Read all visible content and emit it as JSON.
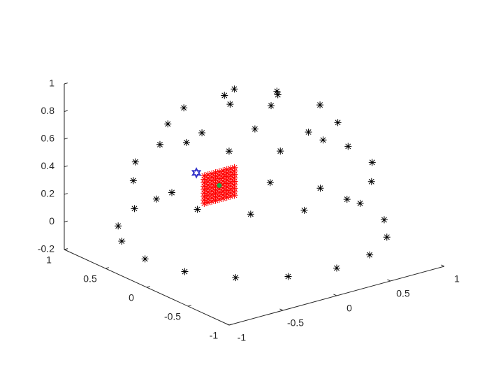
{
  "chart_data": {
    "type": "scatter3",
    "xlim": [
      -1,
      1
    ],
    "ylim": [
      -1,
      1
    ],
    "zlim": [
      -0.2,
      1
    ],
    "xticks": [
      -1,
      -0.5,
      0,
      0.5,
      1
    ],
    "yticks": [
      -1,
      -0.5,
      0,
      0.5,
      1
    ],
    "zticks": [
      -0.2,
      0,
      0.2,
      0.4,
      0.6,
      0.8,
      1
    ],
    "grid": false,
    "series": [
      {
        "color": "#000000",
        "marker": "asterisk",
        "x": [
          -0.04,
          0.19,
          0.18,
          0.51,
          -0.24,
          -0.02,
          -0.31,
          0.45,
          -0.52,
          -0.27,
          0.47,
          -0.54,
          0.09,
          -0.63,
          -0.67,
          0.18,
          0.42,
          -0.51,
          -0.21,
          -0.63,
          0.69,
          -0.81,
          0.53,
          0,
          -0.91,
          0.7,
          0.92,
          0.18,
          0.31,
          -0.93,
          -0.82,
          -0.57,
          -0.21,
          -0.79,
          0.61,
          -0.91,
          0.65,
          -1,
          0.36,
          -0.93,
          0,
          -0.71,
          -0.39
        ],
        "y": [
          0.19,
          0.61,
          -0.04,
          0.38,
          -0.02,
          -0.23,
          0.45,
          -0.21,
          0.37,
          -0.36,
          -0.4,
          -0.07,
          -0.54,
          0,
          0.27,
          -0.6,
          -0.59,
          -0.36,
          -0.59,
          0.62,
          -0.53,
          0.41,
          -0.73,
          1,
          0,
          0.72,
          0.4,
          -0.89,
          -0.88,
          0.24,
          -0.38,
          -0.7,
          -0.88,
          0.62,
          -0.78,
          0.42,
          -0.76,
          0.02,
          -0.93,
          -0.37,
          -1,
          -0.7,
          -0.92
        ],
        "z": [
          0.98,
          0.77,
          0.98,
          0.77,
          0.97,
          0.97,
          0.83,
          0.87,
          0.78,
          0.89,
          0.79,
          0.84,
          0.84,
          0.77,
          0.69,
          0.78,
          0.68,
          0.78,
          0.78,
          0.46,
          0.49,
          0.42,
          0.44,
          0,
          0.42,
          0,
          0,
          0.43,
          0.37,
          0.29,
          0.43,
          0.43,
          0.43,
          0.03,
          0.16,
          0,
          0.02,
          0,
          0,
          0,
          0,
          0,
          0
        ]
      },
      {
        "color": "#ff0000",
        "marker": "asterisk",
        "x": [
          -0.81,
          -0.775,
          -0.74,
          -0.705,
          -0.67,
          -0.635,
          -0.6,
          -0.565,
          -0.53,
          -0.81,
          -0.775,
          -0.74,
          -0.705,
          -0.67,
          -0.635,
          -0.6,
          -0.565,
          -0.53,
          -0.81,
          -0.775,
          -0.74,
          -0.705,
          -0.67,
          -0.635,
          -0.6,
          -0.565,
          -0.53,
          -0.81,
          -0.775,
          -0.74,
          -0.705,
          -0.67,
          -0.635,
          -0.6,
          -0.565,
          -0.53,
          -0.81,
          -0.775,
          -0.74,
          -0.705,
          -0.67,
          -0.635,
          -0.6,
          -0.565,
          -0.53,
          -0.81,
          -0.775,
          -0.74,
          -0.705,
          -0.67,
          -0.635,
          -0.6,
          -0.565,
          -0.53,
          -0.81,
          -0.775,
          -0.74,
          -0.705,
          -0.67,
          -0.635,
          -0.6,
          -0.565,
          -0.53,
          -0.81,
          -0.775,
          -0.74,
          -0.705,
          -0.67,
          -0.635,
          -0.6,
          -0.565,
          -0.53,
          -0.81,
          -0.775,
          -0.74,
          -0.705,
          -0.67,
          -0.635,
          -0.6,
          -0.565,
          -0.53
        ],
        "y": [
          -0.45,
          -0.45,
          -0.45,
          -0.45,
          -0.45,
          -0.45,
          -0.45,
          -0.45,
          -0.45,
          -0.45,
          -0.45,
          -0.45,
          -0.45,
          -0.45,
          -0.45,
          -0.45,
          -0.45,
          -0.45,
          -0.45,
          -0.45,
          -0.45,
          -0.45,
          -0.45,
          -0.45,
          -0.45,
          -0.45,
          -0.45,
          -0.45,
          -0.45,
          -0.45,
          -0.45,
          -0.45,
          -0.45,
          -0.45,
          -0.45,
          -0.45,
          -0.45,
          -0.45,
          -0.45,
          -0.45,
          -0.45,
          -0.45,
          -0.45,
          -0.45,
          -0.45,
          -0.45,
          -0.45,
          -0.45,
          -0.45,
          -0.45,
          -0.45,
          -0.45,
          -0.45,
          -0.45,
          -0.45,
          -0.45,
          -0.45,
          -0.45,
          -0.45,
          -0.45,
          -0.45,
          -0.45,
          -0.45,
          -0.45,
          -0.45,
          -0.45,
          -0.45,
          -0.45,
          -0.45,
          -0.45,
          -0.45,
          -0.45,
          -0.45,
          -0.45,
          -0.45,
          -0.45,
          -0.45,
          -0.45,
          -0.45,
          -0.45,
          -0.45
        ],
        "z": [
          0.49,
          0.49,
          0.49,
          0.49,
          0.49,
          0.49,
          0.49,
          0.49,
          0.49,
          0.515,
          0.515,
          0.515,
          0.515,
          0.515,
          0.515,
          0.515,
          0.515,
          0.515,
          0.54,
          0.54,
          0.54,
          0.54,
          0.54,
          0.54,
          0.54,
          0.54,
          0.54,
          0.565,
          0.565,
          0.565,
          0.565,
          0.565,
          0.565,
          0.565,
          0.565,
          0.565,
          0.59,
          0.59,
          0.59,
          0.59,
          0.59,
          0.59,
          0.59,
          0.59,
          0.59,
          0.615,
          0.615,
          0.615,
          0.615,
          0.615,
          0.615,
          0.615,
          0.615,
          0.615,
          0.64,
          0.64,
          0.64,
          0.64,
          0.64,
          0.64,
          0.64,
          0.64,
          0.64,
          0.665,
          0.665,
          0.665,
          0.665,
          0.665,
          0.665,
          0.665,
          0.665,
          0.665,
          0.69,
          0.69,
          0.69,
          0.69,
          0.69,
          0.69,
          0.69,
          0.69,
          0.69
        ]
      },
      {
        "color": "#2f2fc8",
        "marker": "hexagram",
        "x": [
          -0.73
        ],
        "y": [
          -0.25
        ],
        "z": [
          0.64
        ]
      },
      {
        "color": "#22a844",
        "marker": "dot",
        "x": [
          -0.67
        ],
        "y": [
          -0.45
        ],
        "z": [
          0.59
        ]
      }
    ]
  }
}
